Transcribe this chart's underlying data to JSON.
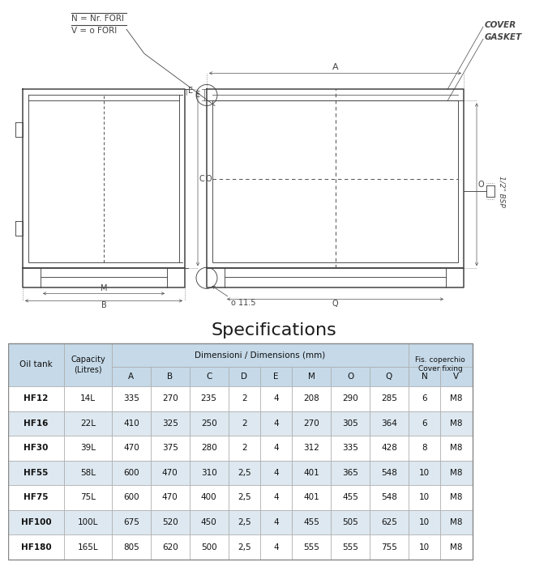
{
  "title": "Specifications",
  "title_fontsize": 16,
  "rows": [
    [
      "HF12",
      "14L",
      "335",
      "270",
      "235",
      "2",
      "4",
      "208",
      "290",
      "285",
      "6",
      "M8"
    ],
    [
      "HF16",
      "22L",
      "410",
      "325",
      "250",
      "2",
      "4",
      "270",
      "305",
      "364",
      "6",
      "M8"
    ],
    [
      "HF30",
      "39L",
      "470",
      "375",
      "280",
      "2",
      "4",
      "312",
      "335",
      "428",
      "8",
      "M8"
    ],
    [
      "HF55",
      "58L",
      "600",
      "470",
      "310",
      "2,5",
      "4",
      "401",
      "365",
      "548",
      "10",
      "M8"
    ],
    [
      "HF75",
      "75L",
      "600",
      "470",
      "400",
      "2,5",
      "4",
      "401",
      "455",
      "548",
      "10",
      "M8"
    ],
    [
      "HF100",
      "100L",
      "675",
      "520",
      "450",
      "2,5",
      "4",
      "455",
      "505",
      "625",
      "10",
      "M8"
    ],
    [
      "HF180",
      "165L",
      "805",
      "620",
      "500",
      "2,5",
      "4",
      "555",
      "555",
      "755",
      "10",
      "M8"
    ]
  ],
  "header_bg": "#c5d9e8",
  "row_bg_even": "#dde8f0",
  "row_bg_odd": "#ffffff",
  "line_color": "#444444",
  "bg_color": "#ffffff",
  "dim_header": "Dimensioni / Dimensions (mm)",
  "fis_header": "Fis. coperchio\nCover fixing",
  "sub_cols": [
    "A",
    "B",
    "C",
    "D",
    "E",
    "M",
    "O",
    "Q",
    "N",
    "V"
  ],
  "cover_label": "COVER",
  "gasket_label": "GASKET",
  "nv_label1": "N = Nr. FORI",
  "nv_label2": "V = o FORI",
  "bsp_label": "1/2\" BSP",
  "dia_label": "o 11.5"
}
